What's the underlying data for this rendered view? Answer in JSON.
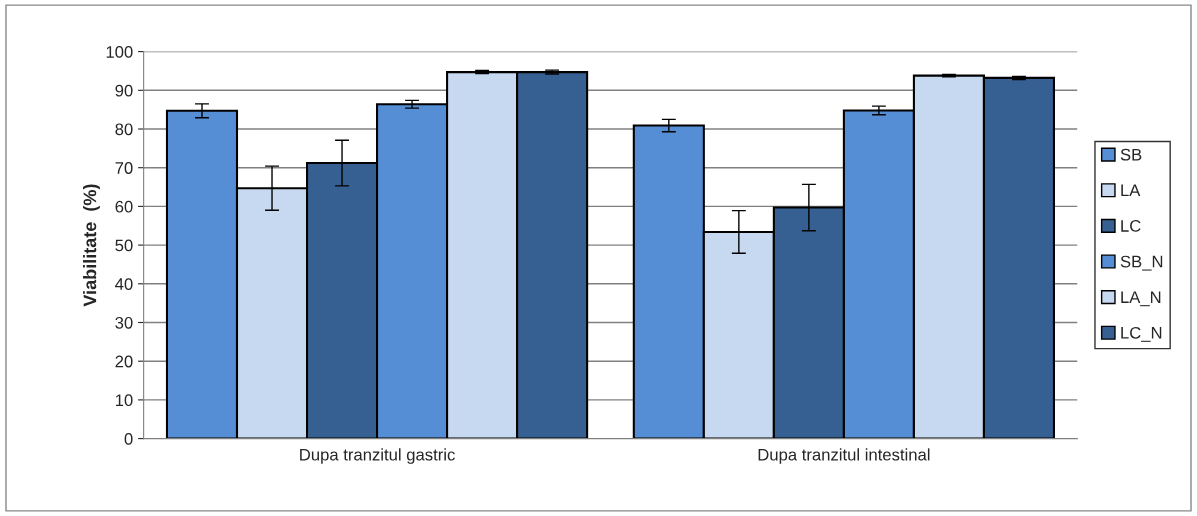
{
  "chart_data": {
    "type": "bar",
    "ylabel": "Viabilitate  (%)",
    "categories": [
      "Dupa tranzitul gastric",
      "Dupa tranzitul intestinal"
    ],
    "series": [
      {
        "name": "SB",
        "color": "#558ed5",
        "values": [
          84.7,
          80.9
        ],
        "errors": [
          1.8,
          1.6
        ]
      },
      {
        "name": "LA",
        "color": "#c6d9f1",
        "values": [
          64.7,
          53.4
        ],
        "errors": [
          5.7,
          5.5
        ]
      },
      {
        "name": "LC",
        "color": "#376092",
        "values": [
          71.2,
          59.7
        ],
        "errors": [
          5.9,
          6.0
        ]
      },
      {
        "name": "SB_N",
        "color": "#558ed5",
        "values": [
          86.4,
          84.8
        ],
        "errors": [
          1.0,
          1.1
        ]
      },
      {
        "name": "LA_N",
        "color": "#c6d9f1",
        "values": [
          94.7,
          93.8
        ],
        "errors": [
          0.4,
          0.3
        ]
      },
      {
        "name": "LC_N",
        "color": "#376092",
        "values": [
          94.7,
          93.2
        ],
        "errors": [
          0.5,
          0.4
        ]
      }
    ],
    "ylim": [
      0,
      100
    ],
    "yticks": [
      0,
      10,
      20,
      30,
      40,
      50,
      60,
      70,
      80,
      90,
      100
    ],
    "grid": "y",
    "legend": "right"
  }
}
